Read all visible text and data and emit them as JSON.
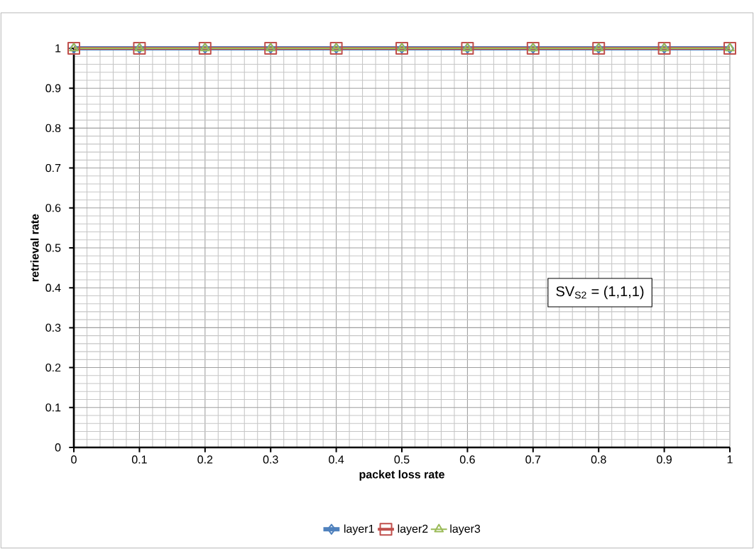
{
  "chart_data": {
    "type": "line",
    "xlabel": "packet loss rate",
    "ylabel": "retrieval rate",
    "x": [
      0,
      0.1,
      0.2,
      0.3,
      0.4,
      0.5,
      0.6,
      0.7,
      0.8,
      0.9,
      1
    ],
    "series": [
      {
        "name": "layer1",
        "color": "#4f81bd",
        "marker": "diamond",
        "values": [
          1,
          1,
          1,
          1,
          1,
          1,
          1,
          1,
          1,
          1,
          1
        ]
      },
      {
        "name": "layer2",
        "color": "#c0504d",
        "marker": "square",
        "values": [
          1,
          1,
          1,
          1,
          1,
          1,
          1,
          1,
          1,
          1,
          1
        ]
      },
      {
        "name": "layer3",
        "color": "#9bbb59",
        "marker": "triangle",
        "values": [
          1,
          1,
          1,
          1,
          1,
          1,
          1,
          1,
          1,
          1,
          1
        ]
      }
    ],
    "xlim": [
      0,
      1
    ],
    "ylim": [
      0,
      1
    ],
    "xticks": [
      0,
      0.1,
      0.2,
      0.3,
      0.4,
      0.5,
      0.6,
      0.7,
      0.8,
      0.9,
      1
    ],
    "yticks": [
      0,
      0.1,
      0.2,
      0.3,
      0.4,
      0.5,
      0.6,
      0.7,
      0.8,
      0.9,
      1
    ],
    "grid": true,
    "legend": "bottom",
    "line_style": "solid",
    "annotations": [
      "SV$_{S2}$ = (1,1,1)"
    ]
  }
}
